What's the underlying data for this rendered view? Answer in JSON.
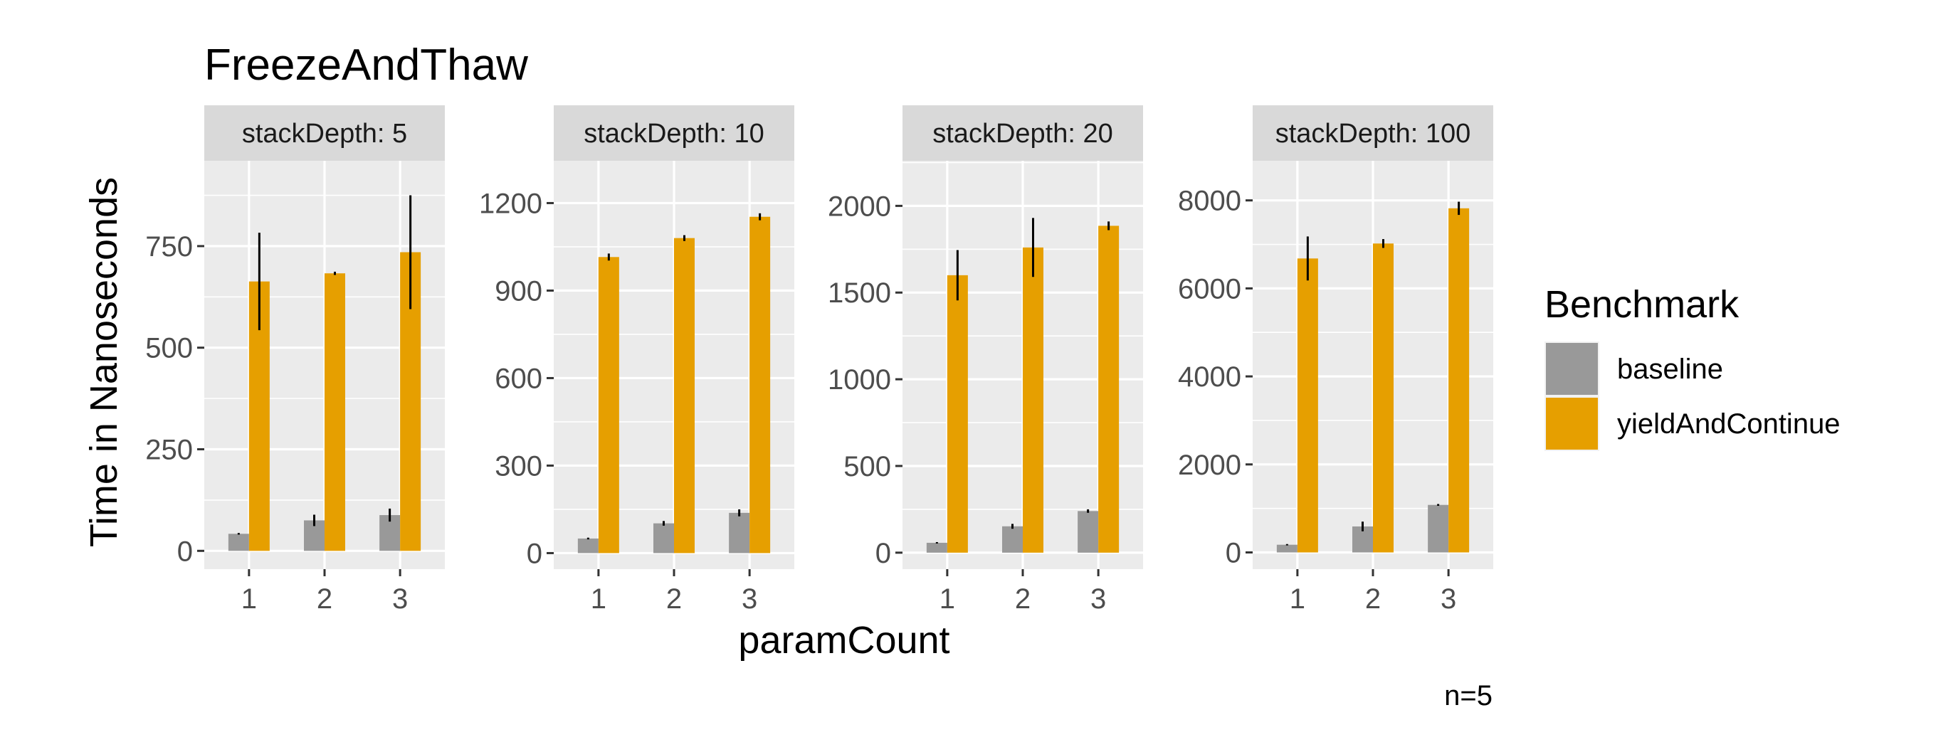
{
  "chart_data": {
    "type": "bar",
    "title": "FreezeAndThaw",
    "xlabel": "paramCount",
    "ylabel": "Time in Nanoseconds",
    "caption": "n=5",
    "legend": {
      "title": "Benchmark",
      "placement": "right",
      "entries": [
        {
          "name": "baseline",
          "color": "#999999"
        },
        {
          "name": "yieldAndContinue",
          "color": "#E69F00"
        }
      ]
    },
    "categories": [
      "1",
      "2",
      "3"
    ],
    "grid": true,
    "facets": [
      {
        "label": "stackDepth: 5",
        "ylim": [
          -45,
          960
        ],
        "yticks": [
          0,
          250,
          500,
          750
        ],
        "series": [
          {
            "name": "baseline",
            "values": [
              42,
              75,
              88
            ],
            "err": [
              2,
              14,
              16
            ]
          },
          {
            "name": "yieldAndContinue",
            "values": [
              663,
              683,
              735
            ],
            "err": [
              120,
              4,
              140
            ]
          }
        ]
      },
      {
        "label": "stackDepth: 10",
        "ylim": [
          -55,
          1345
        ],
        "yticks": [
          0,
          300,
          600,
          900,
          1200
        ],
        "series": [
          {
            "name": "baseline",
            "values": [
              50,
              102,
              138
            ],
            "err": [
              3,
              8,
              12
            ]
          },
          {
            "name": "yieldAndContinue",
            "values": [
              1015,
              1080,
              1153
            ],
            "err": [
              12,
              10,
              12
            ]
          }
        ]
      },
      {
        "label": "stackDepth: 20",
        "ylim": [
          -95,
          2260
        ],
        "yticks": [
          0,
          500,
          1000,
          1500,
          2000
        ],
        "series": [
          {
            "name": "baseline",
            "values": [
              57,
              152,
              240
            ],
            "err": [
              4,
              14,
              10
            ]
          },
          {
            "name": "yieldAndContinue",
            "values": [
              1600,
              1760,
              1885
            ],
            "err": [
              145,
              170,
              25
            ]
          }
        ]
      },
      {
        "label": "stackDepth: 100",
        "ylim": [
          -380,
          8900
        ],
        "yticks": [
          0,
          2000,
          4000,
          6000,
          8000
        ],
        "series": [
          {
            "name": "baseline",
            "values": [
              175,
              590,
              1080
            ],
            "err": [
              15,
              110,
              20
            ]
          },
          {
            "name": "yieldAndContinue",
            "values": [
              6680,
              7020,
              7820
            ],
            "err": [
              500,
              100,
              150
            ]
          }
        ]
      }
    ]
  }
}
